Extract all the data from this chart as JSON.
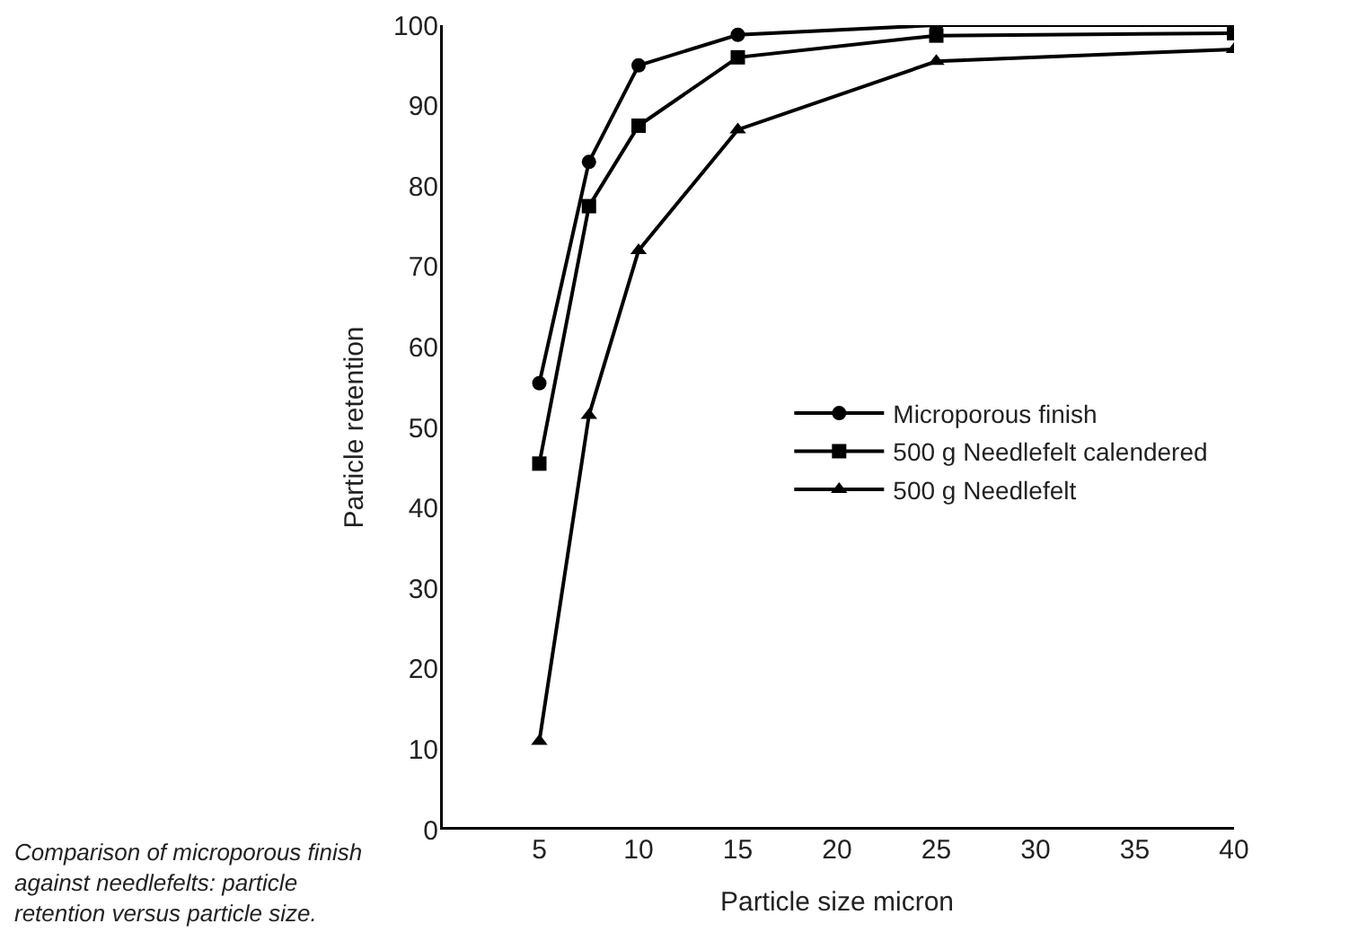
{
  "chart_data": {
    "type": "line",
    "xlabel": "Particle size micron",
    "ylabel": "Particle retention",
    "x": [
      5,
      7.5,
      10,
      15,
      25,
      40
    ],
    "series": [
      {
        "name": "Microporous finish",
        "color": "#000000",
        "marker": "circle",
        "values": [
          55.5,
          83,
          95,
          98.8,
          100,
          100
        ]
      },
      {
        "name": "500 g Needlefelt calendered",
        "color": "#000000",
        "marker": "square",
        "values": [
          45.5,
          77.5,
          87.5,
          96,
          98.7,
          99
        ]
      },
      {
        "name": "500 g Needlefelt",
        "color": "#000000",
        "marker": "triangle",
        "values": [
          11,
          51.5,
          72,
          87,
          95.5,
          97
        ]
      }
    ],
    "xlim": [
      0,
      40
    ],
    "xticks": [
      5,
      10,
      15,
      20,
      25,
      30,
      35,
      40
    ],
    "ylim": [
      0,
      100
    ],
    "yticks": [
      0,
      10,
      20,
      30,
      40,
      50,
      60,
      70,
      80,
      90,
      100
    ],
    "legend": "right",
    "line_style": "solid",
    "annotations": [
      "Comparison of microporous finish\nagainst needlefelts: particle\nretention versus particle size."
    ]
  }
}
